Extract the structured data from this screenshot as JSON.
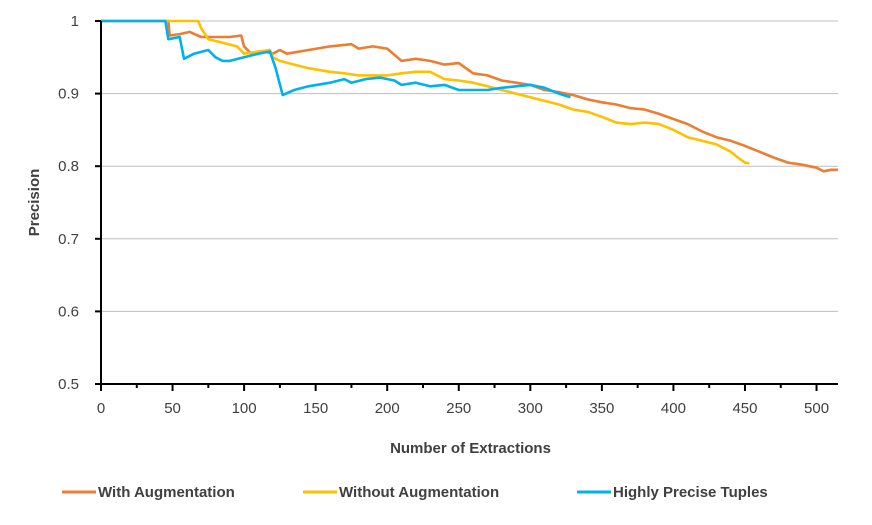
{
  "chart_data": {
    "type": "line",
    "title": "",
    "xlabel": "Number of Extractions",
    "ylabel": "Precision",
    "xlim": [
      0,
      515
    ],
    "ylim": [
      0.5,
      1.0
    ],
    "x_ticks": [
      "0",
      "50",
      "100",
      "150",
      "200",
      "250",
      "300",
      "350",
      "400",
      "450",
      "500"
    ],
    "x_tick_values": [
      0,
      50,
      100,
      150,
      200,
      250,
      300,
      350,
      400,
      450,
      500
    ],
    "y_ticks": [
      "0.5",
      "0.6",
      "0.7",
      "0.8",
      "0.9",
      "1"
    ],
    "y_tick_values": [
      0.5,
      0.6,
      0.7,
      0.8,
      0.9,
      1.0
    ],
    "grid": true,
    "legend_position": "bottom",
    "series": [
      {
        "name": "With Augmentation",
        "color": "#ED7D31",
        "points": [
          [
            0,
            1.0
          ],
          [
            47,
            1.0
          ],
          [
            48,
            0.98
          ],
          [
            55,
            0.982
          ],
          [
            62,
            0.985
          ],
          [
            70,
            0.978
          ],
          [
            80,
            0.978
          ],
          [
            90,
            0.978
          ],
          [
            98,
            0.98
          ],
          [
            100,
            0.965
          ],
          [
            105,
            0.955
          ],
          [
            115,
            0.958
          ],
          [
            120,
            0.955
          ],
          [
            125,
            0.96
          ],
          [
            130,
            0.955
          ],
          [
            145,
            0.96
          ],
          [
            160,
            0.965
          ],
          [
            175,
            0.968
          ],
          [
            180,
            0.962
          ],
          [
            190,
            0.965
          ],
          [
            200,
            0.962
          ],
          [
            210,
            0.945
          ],
          [
            220,
            0.948
          ],
          [
            230,
            0.945
          ],
          [
            240,
            0.94
          ],
          [
            250,
            0.942
          ],
          [
            255,
            0.935
          ],
          [
            260,
            0.928
          ],
          [
            270,
            0.925
          ],
          [
            280,
            0.918
          ],
          [
            290,
            0.915
          ],
          [
            300,
            0.912
          ],
          [
            310,
            0.905
          ],
          [
            320,
            0.902
          ],
          [
            330,
            0.898
          ],
          [
            340,
            0.892
          ],
          [
            350,
            0.888
          ],
          [
            360,
            0.885
          ],
          [
            370,
            0.88
          ],
          [
            380,
            0.878
          ],
          [
            390,
            0.872
          ],
          [
            400,
            0.865
          ],
          [
            410,
            0.858
          ],
          [
            420,
            0.848
          ],
          [
            430,
            0.84
          ],
          [
            440,
            0.835
          ],
          [
            450,
            0.828
          ],
          [
            460,
            0.82
          ],
          [
            470,
            0.812
          ],
          [
            480,
            0.805
          ],
          [
            490,
            0.802
          ],
          [
            500,
            0.798
          ],
          [
            505,
            0.793
          ],
          [
            510,
            0.795
          ],
          [
            515,
            0.795
          ]
        ]
      },
      {
        "name": "Without Augmentation",
        "color": "#FFC000",
        "points": [
          [
            0,
            1.0
          ],
          [
            68,
            1.0
          ],
          [
            70,
            0.99
          ],
          [
            75,
            0.975
          ],
          [
            85,
            0.97
          ],
          [
            95,
            0.965
          ],
          [
            100,
            0.955
          ],
          [
            110,
            0.958
          ],
          [
            118,
            0.96
          ],
          [
            120,
            0.95
          ],
          [
            125,
            0.945
          ],
          [
            135,
            0.94
          ],
          [
            145,
            0.935
          ],
          [
            160,
            0.93
          ],
          [
            170,
            0.928
          ],
          [
            180,
            0.925
          ],
          [
            190,
            0.925
          ],
          [
            200,
            0.925
          ],
          [
            210,
            0.928
          ],
          [
            220,
            0.93
          ],
          [
            230,
            0.93
          ],
          [
            240,
            0.92
          ],
          [
            250,
            0.918
          ],
          [
            260,
            0.915
          ],
          [
            270,
            0.91
          ],
          [
            280,
            0.905
          ],
          [
            290,
            0.9
          ],
          [
            300,
            0.895
          ],
          [
            310,
            0.89
          ],
          [
            320,
            0.885
          ],
          [
            330,
            0.878
          ],
          [
            340,
            0.875
          ],
          [
            350,
            0.868
          ],
          [
            360,
            0.86
          ],
          [
            370,
            0.858
          ],
          [
            380,
            0.86
          ],
          [
            390,
            0.858
          ],
          [
            400,
            0.85
          ],
          [
            410,
            0.84
          ],
          [
            420,
            0.835
          ],
          [
            430,
            0.83
          ],
          [
            440,
            0.82
          ],
          [
            445,
            0.812
          ],
          [
            450,
            0.805
          ],
          [
            453,
            0.804
          ]
        ]
      },
      {
        "name": "Highly Precise Tuples",
        "color": "#00B0F0",
        "points": [
          [
            0,
            1.0
          ],
          [
            45,
            1.0
          ],
          [
            47,
            0.975
          ],
          [
            55,
            0.978
          ],
          [
            58,
            0.948
          ],
          [
            65,
            0.955
          ],
          [
            75,
            0.96
          ],
          [
            80,
            0.95
          ],
          [
            85,
            0.945
          ],
          [
            90,
            0.945
          ],
          [
            100,
            0.95
          ],
          [
            110,
            0.955
          ],
          [
            118,
            0.958
          ],
          [
            122,
            0.935
          ],
          [
            127,
            0.898
          ],
          [
            135,
            0.905
          ],
          [
            145,
            0.91
          ],
          [
            160,
            0.915
          ],
          [
            170,
            0.92
          ],
          [
            175,
            0.915
          ],
          [
            185,
            0.92
          ],
          [
            195,
            0.922
          ],
          [
            205,
            0.918
          ],
          [
            210,
            0.912
          ],
          [
            220,
            0.915
          ],
          [
            230,
            0.91
          ],
          [
            240,
            0.912
          ],
          [
            250,
            0.905
          ],
          [
            260,
            0.905
          ],
          [
            270,
            0.905
          ],
          [
            280,
            0.908
          ],
          [
            290,
            0.91
          ],
          [
            300,
            0.912
          ],
          [
            310,
            0.908
          ],
          [
            320,
            0.9
          ],
          [
            328,
            0.895
          ]
        ]
      }
    ]
  }
}
